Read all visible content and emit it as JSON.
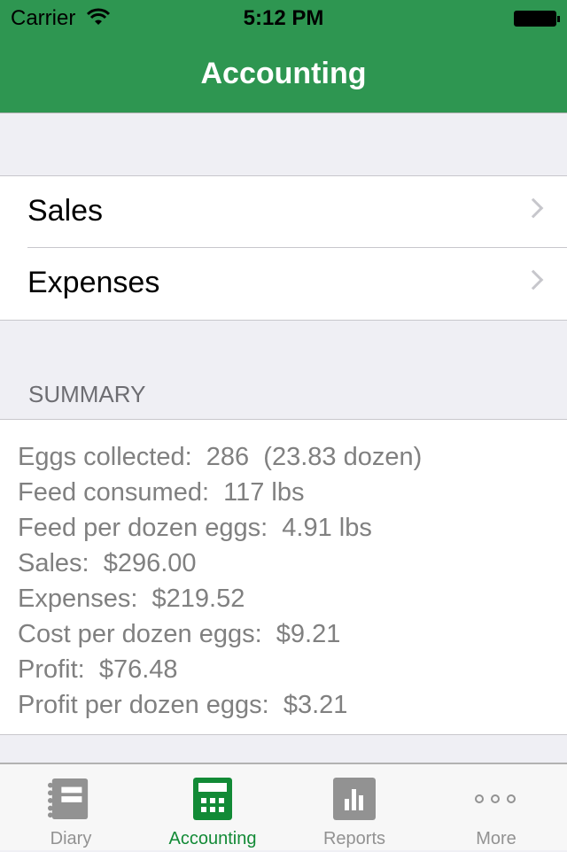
{
  "status": {
    "carrier": "Carrier",
    "time": "5:12 PM"
  },
  "nav": {
    "title": "Accounting"
  },
  "menu": [
    {
      "label": "Sales"
    },
    {
      "label": "Expenses"
    }
  ],
  "summary": {
    "header": "SUMMARY",
    "lines": [
      "Eggs collected:  286  (23.83 dozen)",
      "Feed consumed:  117 lbs",
      "Feed per dozen eggs:  4.91 lbs",
      "Sales:  $296.00",
      "Expenses:  $219.52",
      "Cost per dozen eggs:  $9.21",
      "Profit:  $76.48",
      "Profit per dozen eggs:  $3.21"
    ]
  },
  "tabs": [
    {
      "label": "Diary",
      "icon": "notebook-icon"
    },
    {
      "label": "Accounting",
      "icon": "calculator-icon",
      "active": true
    },
    {
      "label": "Reports",
      "icon": "bar-chart-icon"
    },
    {
      "label": "More",
      "icon": "more-icon"
    }
  ],
  "colors": {
    "brand": "#2e9651",
    "active_tab": "#128a36",
    "inactive_tab": "#929292"
  }
}
